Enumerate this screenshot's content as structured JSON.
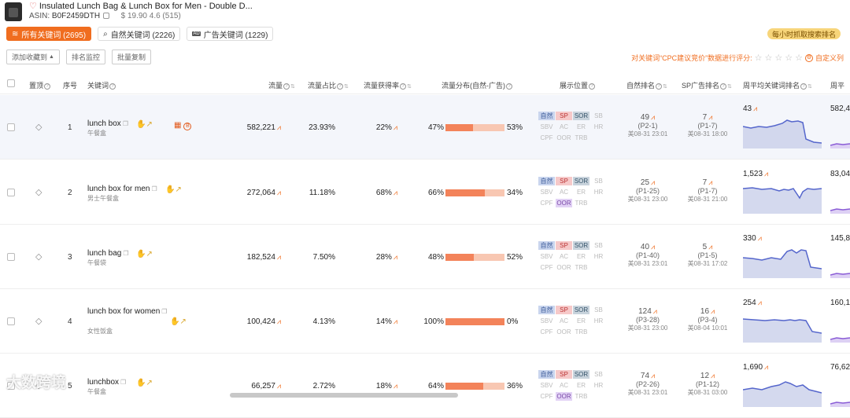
{
  "product": {
    "title": "Insulated Lunch Bag & Lunch Box for Men - Double D...",
    "asin_label": "ASIN:",
    "asin": "B0F2459DTH",
    "price_rating": "$ 19.90 4.6 (515)"
  },
  "tabs": [
    {
      "label": "所有关键词 (2695)",
      "active": true
    },
    {
      "label": "自然关键词 (2226)",
      "active": false
    },
    {
      "label": "广告关键词 (1229)",
      "active": false
    }
  ],
  "hourly_badge": "每小时抓取搜索排名",
  "toolbar": {
    "add_collect": "添加收藏到",
    "rank_monitor": "排名监控",
    "batch_copy": "批量复制"
  },
  "cpc_notice": {
    "text": "对关键词“CPC建议竞价”数据进行评分:",
    "stars": 5,
    "custom": "自定义列"
  },
  "columns": {
    "pin": "置顶",
    "index": "序号",
    "keyword": "关键词",
    "traffic": "流量",
    "traffic_share": "流量占比",
    "traffic_win": "流量获得率",
    "traffic_dist": "流量分布(自然-广告)",
    "placement": "展示位置",
    "organic_rank": "自然排名",
    "sp_rank": "SP广告排名",
    "weekly_rank": "周平均关键词排名",
    "weekly_next": "周平"
  },
  "placement_labels": [
    "自然",
    "SP",
    "SOR",
    "SB",
    "SBV",
    "AC",
    "ER",
    "HR",
    "CPF",
    "OOR",
    "TRB"
  ],
  "rows": [
    {
      "index": "1",
      "keyword": "lunch box",
      "keyword_cn": "午餐盒",
      "traffic": "582,221",
      "share": "23.93%",
      "win": "22%",
      "organic_pct": "47%",
      "ad_pct": "53%",
      "organic_frac": 0.47,
      "active": [
        "自然",
        "SP",
        "SOR"
      ],
      "organic_rank": "49",
      "organic_page": "(P2-1)",
      "organic_time": "美08-31 23:01",
      "sp_rank": "7",
      "sp_page": "(P1-7)",
      "sp_time": "美08-31 18:00",
      "weekly": "43",
      "weekly2": "582,4",
      "highlight": true
    },
    {
      "index": "2",
      "keyword": "lunch box for men",
      "keyword_cn": "男士午餐盒",
      "traffic": "272,064",
      "share": "11.18%",
      "win": "68%",
      "organic_pct": "66%",
      "ad_pct": "34%",
      "organic_frac": 0.66,
      "active": [
        "自然",
        "SP",
        "SOR",
        "OOR"
      ],
      "organic_rank": "25",
      "organic_page": "(P1-25)",
      "organic_time": "美08-31 23:00",
      "sp_rank": "7",
      "sp_page": "(P1-7)",
      "sp_time": "美08-31 21:00",
      "weekly": "1,523",
      "weekly2": "83,04",
      "highlight": false
    },
    {
      "index": "3",
      "keyword": "lunch bag",
      "keyword_cn": "午餐袋",
      "traffic": "182,524",
      "share": "7.50%",
      "win": "28%",
      "organic_pct": "48%",
      "ad_pct": "52%",
      "organic_frac": 0.48,
      "active": [
        "自然",
        "SP",
        "SOR"
      ],
      "organic_rank": "40",
      "organic_page": "(P1-40)",
      "organic_time": "美08-31 23:01",
      "sp_rank": "5",
      "sp_page": "(P1-5)",
      "sp_time": "美08-31 17:02",
      "weekly": "330",
      "weekly2": "145,8",
      "highlight": false
    },
    {
      "index": "4",
      "keyword": "lunch box for women",
      "keyword_cn": "女性饭盒",
      "traffic": "100,424",
      "share": "4.13%",
      "win": "14%",
      "organic_pct": "100%",
      "ad_pct": "0%",
      "organic_frac": 1.0,
      "active": [
        "自然",
        "SP",
        "SOR"
      ],
      "organic_rank": "124",
      "organic_page": "(P3-28)",
      "organic_time": "美08-31 23:00",
      "sp_rank": "16",
      "sp_page": "(P3-4)",
      "sp_time": "美08-04 10:01",
      "weekly": "254",
      "weekly2": "160,1",
      "highlight": false
    },
    {
      "index": "5",
      "keyword": "lunchbox",
      "keyword_cn": "午餐盒",
      "traffic": "66,257",
      "share": "2.72%",
      "win": "18%",
      "organic_pct": "64%",
      "ad_pct": "36%",
      "organic_frac": 0.64,
      "active": [
        "自然",
        "SP",
        "SOR",
        "OOR"
      ],
      "organic_rank": "74",
      "organic_page": "(P2-26)",
      "organic_time": "美08-31 23:01",
      "sp_rank": "12",
      "sp_page": "(P1-12)",
      "sp_time": "美08-31 03:00",
      "weekly": "1,690",
      "weekly2": "76,62",
      "highlight": false
    }
  ],
  "watermark": "大数跨境",
  "colors": {
    "accent": "#f06d1f",
    "organic_bar": "#f3835a",
    "ad_bar": "#f8c7b2",
    "spark": "#5566cc"
  }
}
